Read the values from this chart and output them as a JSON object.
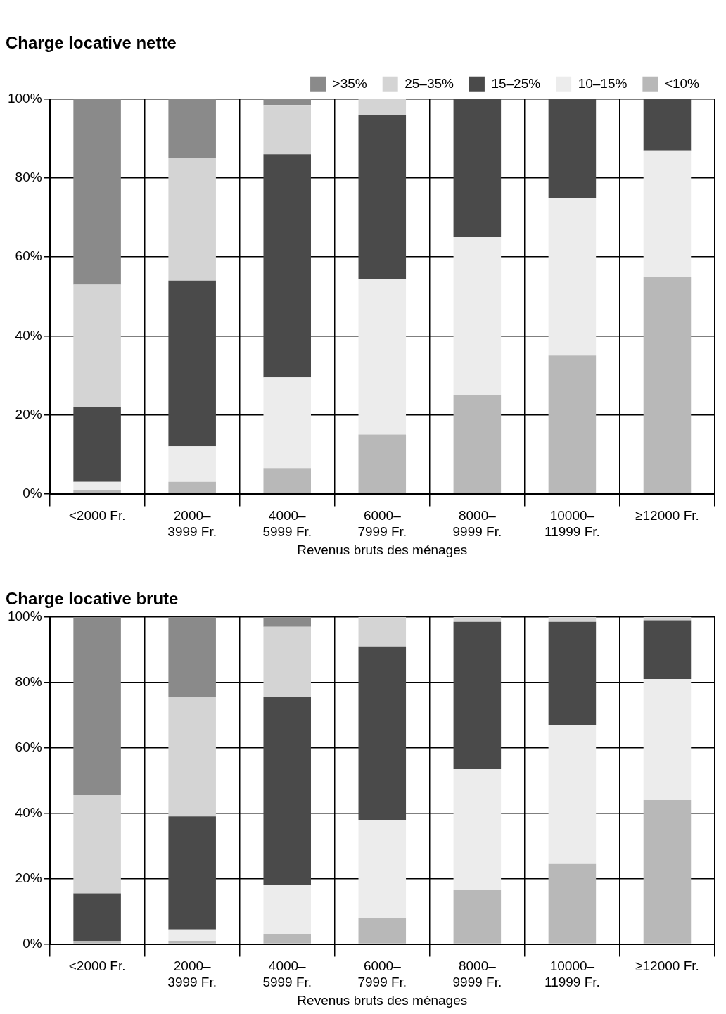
{
  "chart_data": [
    {
      "type": "bar",
      "title": "Charge locative nette",
      "xlabel": "Revenus bruts des ménages",
      "stacked": true,
      "categories": [
        "<2000 Fr.",
        "2000–3999 Fr.",
        "4000–5999 Fr.",
        "6000–7999 Fr.",
        "8000–9999 Fr.",
        "10000–11999 Fr.",
        "≥12000 Fr."
      ],
      "series": [
        {
          "name": "<10%",
          "color": "#b8b8b8",
          "values": [
            1,
            3,
            6.5,
            15,
            25,
            35,
            55
          ]
        },
        {
          "name": "10–15%",
          "color": "#ececec",
          "values": [
            2,
            9,
            23,
            39.5,
            40,
            40,
            32
          ]
        },
        {
          "name": "15–25%",
          "color": "#4a4a4a",
          "values": [
            19,
            42,
            56.5,
            41.5,
            35,
            25,
            13
          ]
        },
        {
          "name": "25–35%",
          "color": "#d4d4d4",
          "values": [
            31,
            31,
            12.5,
            4,
            0,
            0,
            0
          ]
        },
        {
          "name": ">35%",
          "color": "#8a8a8a",
          "values": [
            47,
            15,
            1.5,
            0,
            0,
            0,
            0
          ]
        }
      ],
      "ylim": [
        0,
        100
      ],
      "yticks": [
        {
          "value": 0,
          "label": "0%"
        },
        {
          "value": 20,
          "label": "20%"
        },
        {
          "value": 40,
          "label": "40%"
        },
        {
          "value": 60,
          "label": "60%"
        },
        {
          "value": 80,
          "label": "80%"
        },
        {
          "value": 100,
          "label": "100%"
        }
      ],
      "grid": true,
      "legend": "top right"
    },
    {
      "type": "bar",
      "title": "Charge locative brute",
      "xlabel": "Revenus bruts des ménages",
      "stacked": true,
      "categories": [
        "<2000 Fr.",
        "2000–3999 Fr.",
        "4000–5999 Fr.",
        "6000–7999 Fr.",
        "8000–9999 Fr.",
        "10000–11999 Fr.",
        "≥12000 Fr."
      ],
      "series": [
        {
          "color": "#b8b8b8",
          "values": [
            1,
            1,
            3,
            8,
            16.5,
            24.5,
            44
          ]
        },
        {
          "color": "#ececec",
          "values": [
            0,
            3.5,
            15,
            30,
            37,
            42.5,
            37
          ]
        },
        {
          "color": "#4a4a4a",
          "values": [
            14.5,
            34.5,
            57.5,
            53,
            45,
            31.5,
            18
          ]
        },
        {
          "color": "#d4d4d4",
          "values": [
            30,
            36.5,
            21.5,
            9,
            1.5,
            1.5,
            1
          ]
        },
        {
          "color": "#8a8a8a",
          "values": [
            54.5,
            24.5,
            3,
            0,
            0,
            0,
            0
          ]
        }
      ],
      "ylim": [
        0,
        100
      ],
      "yticks": [
        {
          "value": 0,
          "label": "0%"
        },
        {
          "value": 20,
          "label": "20%"
        },
        {
          "value": 40,
          "label": "40%"
        },
        {
          "value": 60,
          "label": "60%"
        },
        {
          "value": 80,
          "label": "80%"
        },
        {
          "value": 100,
          "label": "100%"
        }
      ],
      "grid": true
    }
  ]
}
